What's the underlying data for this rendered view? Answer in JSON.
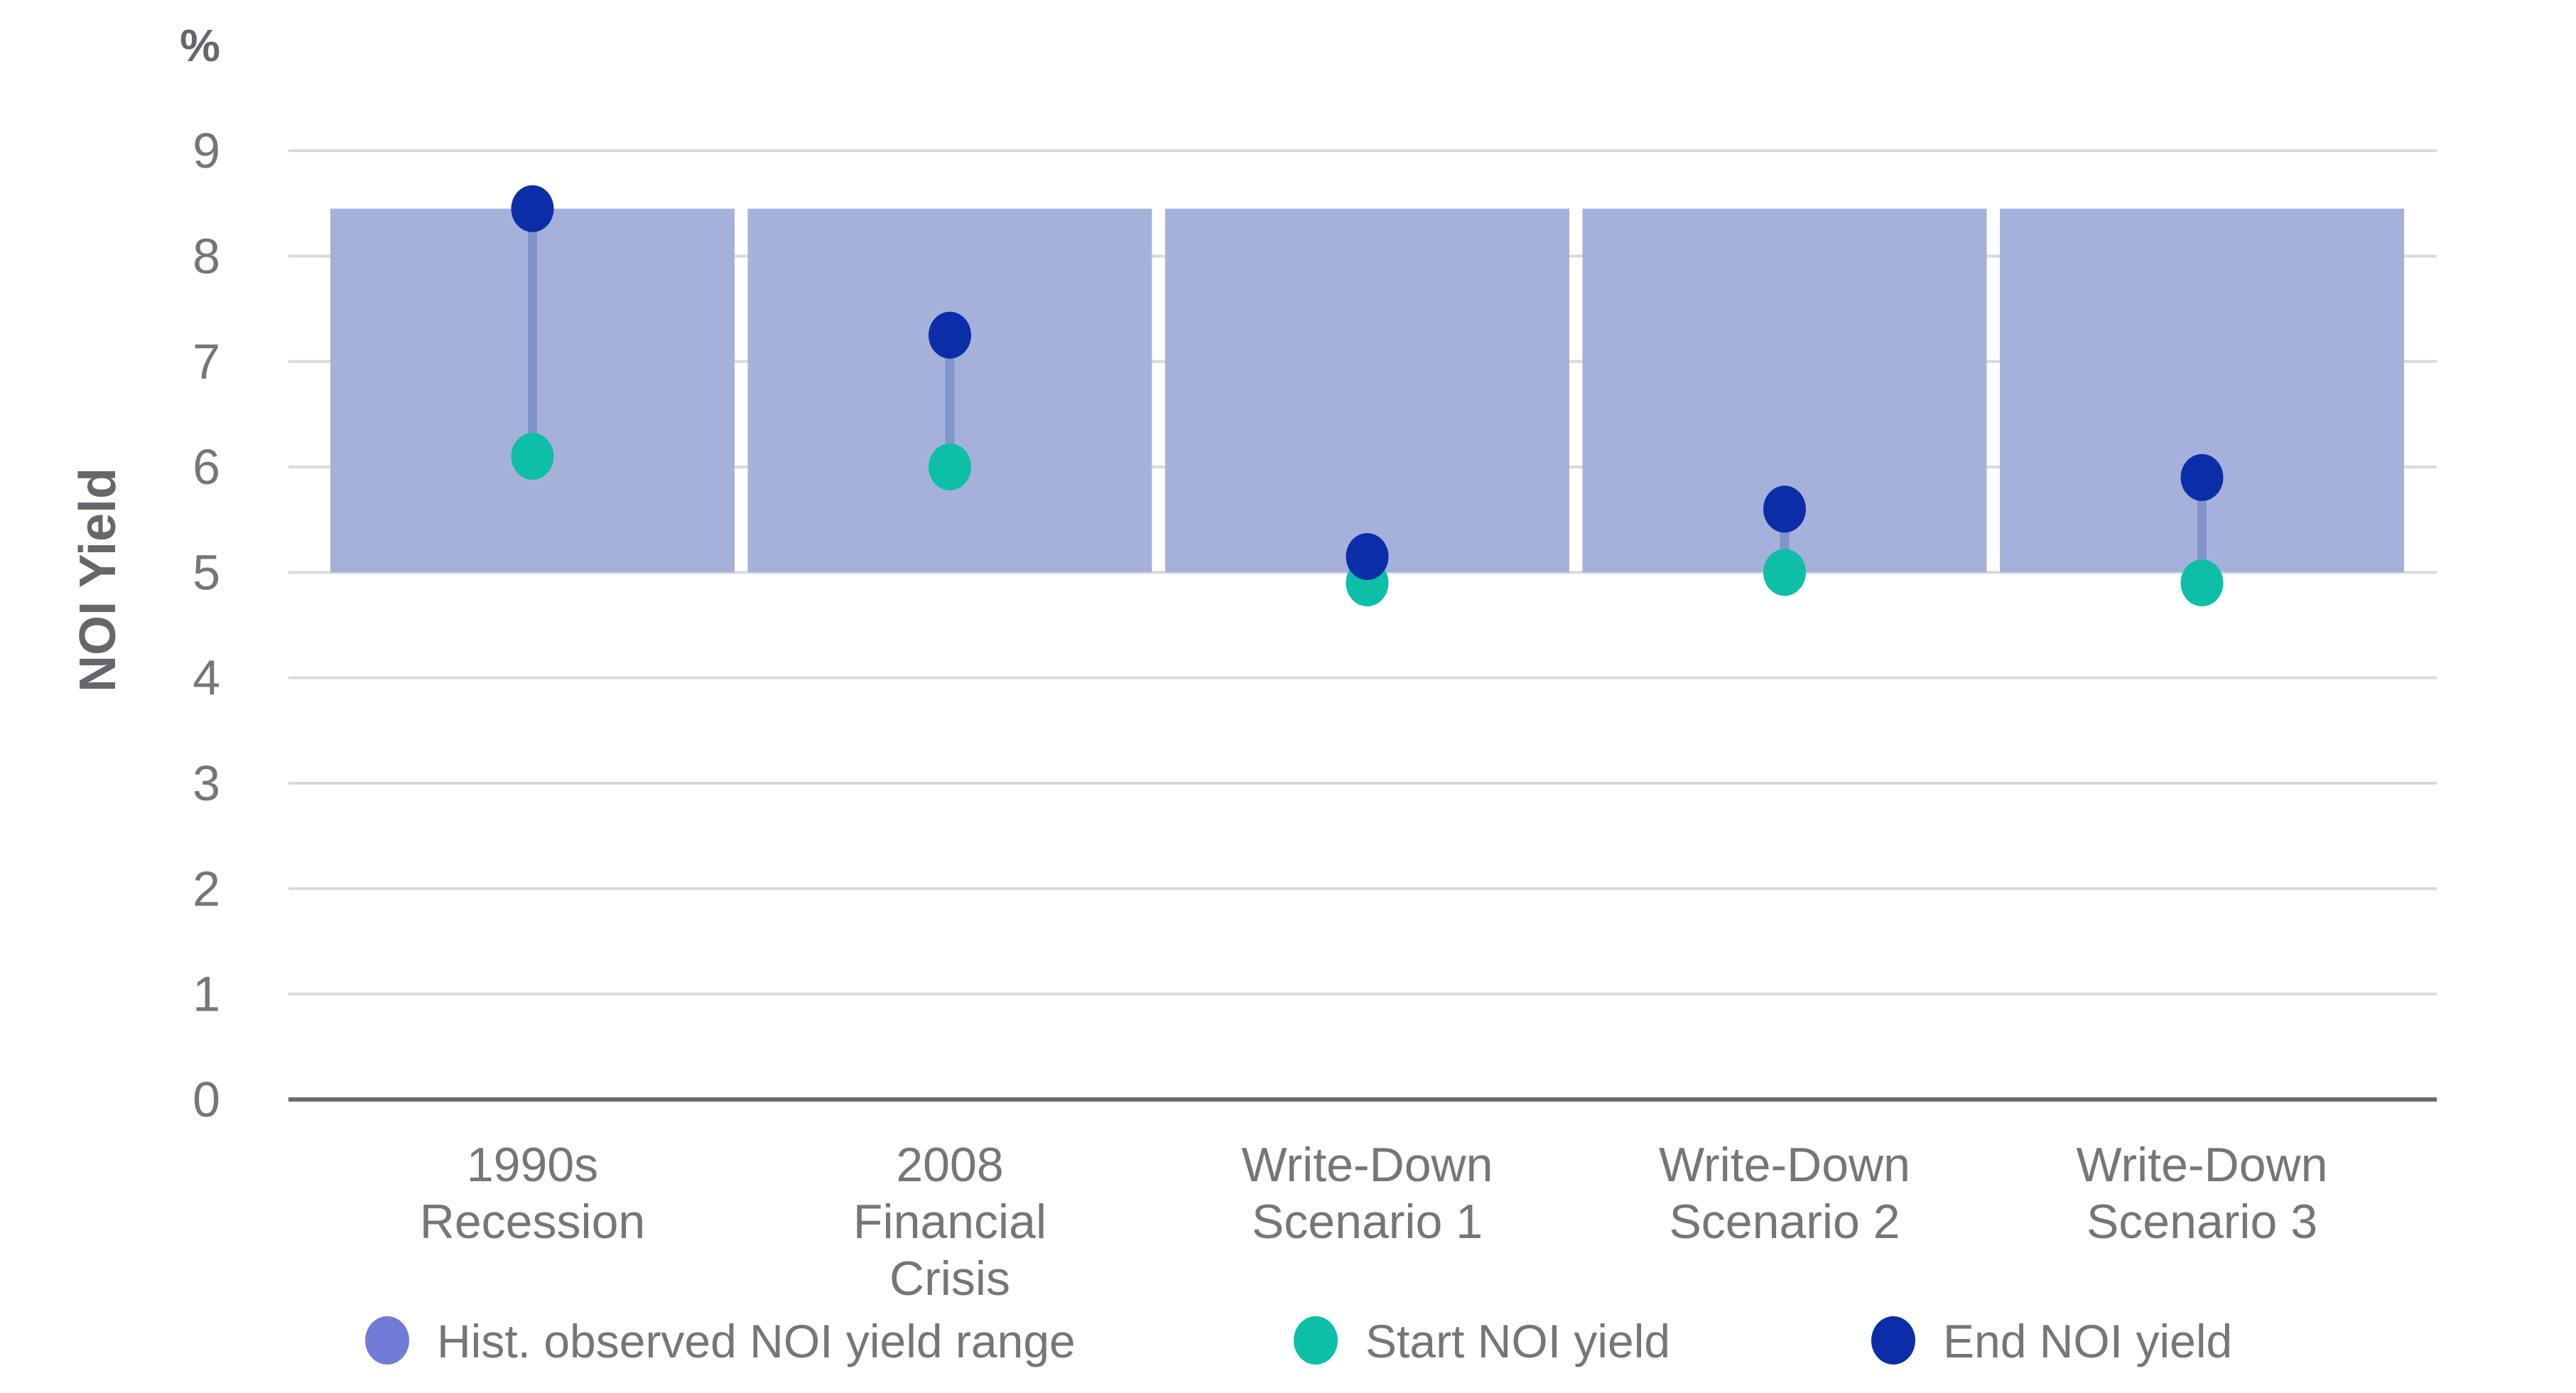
{
  "chart_data": {
    "type": "dumbbell_range",
    "title": "",
    "unit_label": "%",
    "ylabel": "NOI Yield",
    "xlabel": "",
    "ylim": [
      0,
      9
    ],
    "yticks": [
      0,
      1,
      2,
      3,
      4,
      5,
      6,
      7,
      8,
      9
    ],
    "grid": true,
    "legend_position": "bottom",
    "categories": [
      "1990s Recession",
      "2008 Financial Crisis",
      "Write-Down Scenario 1",
      "Write-Down Scenario 2",
      "Write-Down Scenario 3"
    ],
    "category_label_lines": [
      [
        "1990s",
        "Recession"
      ],
      [
        "2008",
        "Financial",
        "Crisis"
      ],
      [
        "Write-Down",
        "Scenario 1"
      ],
      [
        "Write-Down",
        "Scenario 2"
      ],
      [
        "Write-Down",
        "Scenario 3"
      ]
    ],
    "range_band": {
      "name": "Hist. observed NOI yield range",
      "low": 5.0,
      "high": 8.45
    },
    "series": [
      {
        "name": "Start NOI yield",
        "values": [
          6.1,
          6.0,
          4.9,
          5.0,
          4.9
        ]
      },
      {
        "name": "End NOI yield",
        "values": [
          8.45,
          7.25,
          5.15,
          5.6,
          5.9
        ]
      }
    ],
    "legend": [
      {
        "label": "Hist. observed NOI yield range",
        "color": "#707CD6"
      },
      {
        "label": "Start NOI yield",
        "color": "#0CBFA6"
      },
      {
        "label": "End NOI yield",
        "color": "#0B2EA8"
      }
    ],
    "colors": {
      "band": "#A6B1DB",
      "start_dot": "#0CBFA6",
      "end_dot": "#0B2EA8",
      "connector": "#7E95CC",
      "grid": "#D9D9D9",
      "axis_line": "#6B6B6B",
      "text": "#75767B",
      "bold_text": "#66676C"
    }
  }
}
